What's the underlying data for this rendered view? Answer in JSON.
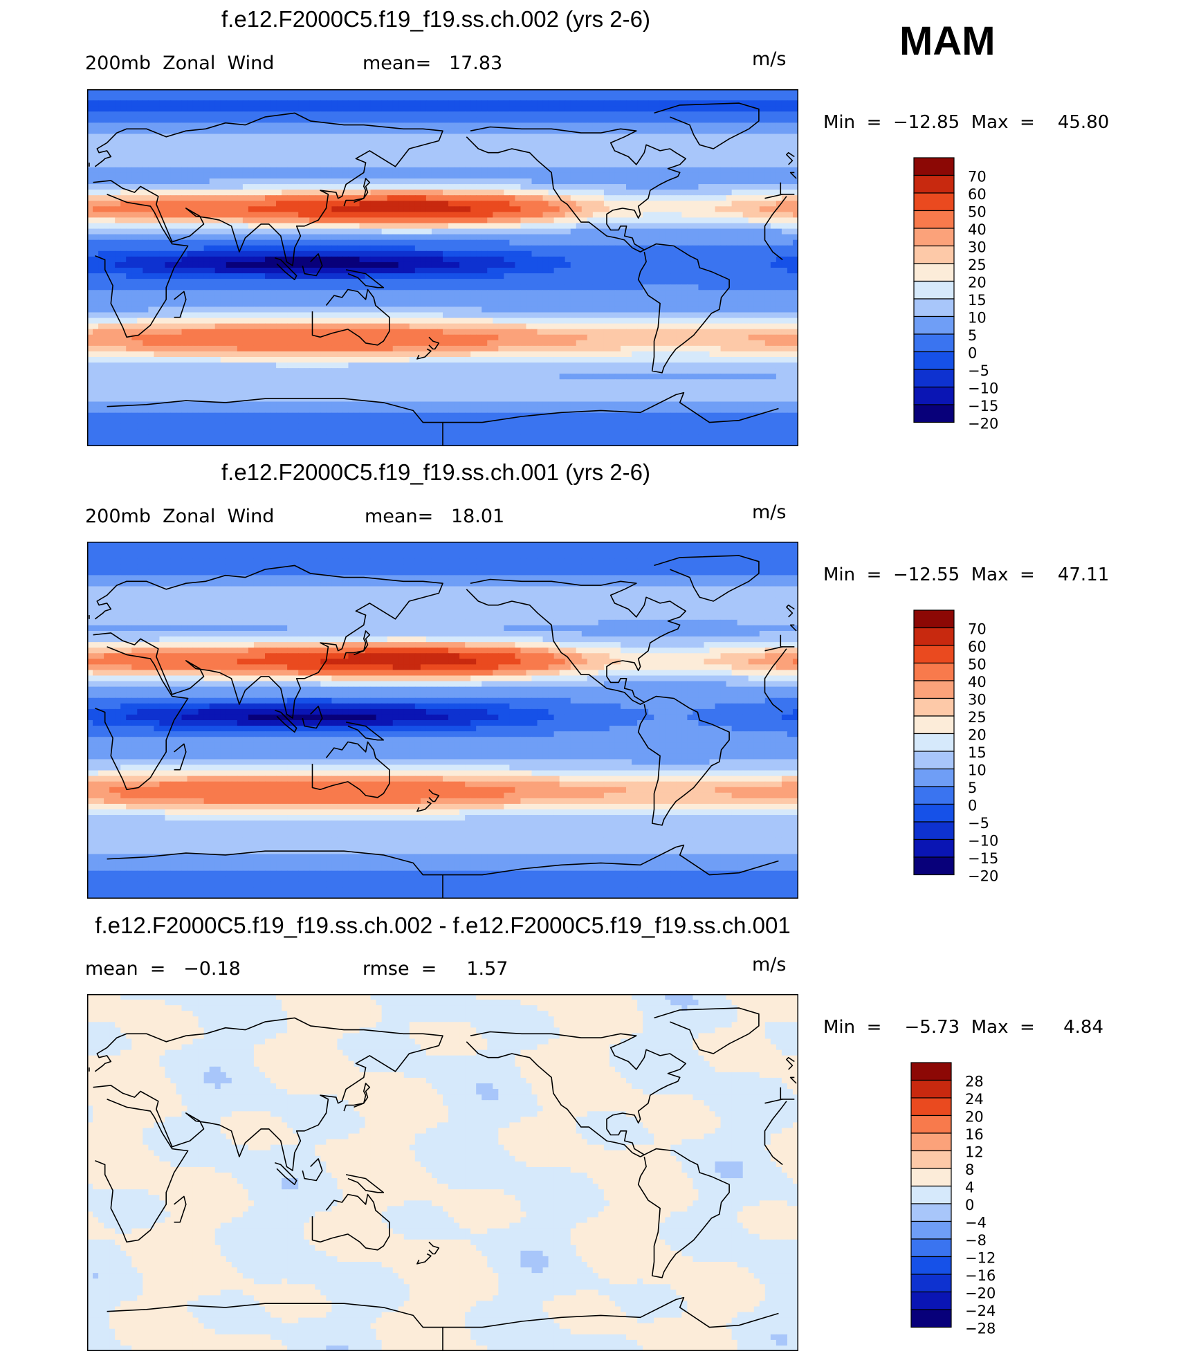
{
  "season": "MAM",
  "colors": {
    "abs_palette": [
      "#08007a",
      "#0a15b4",
      "#0e32d0",
      "#1651e8",
      "#3a74f0",
      "#6f9ef6",
      "#a8c6fa",
      "#d6e9fb",
      "#fcecd9",
      "#fdc9a8",
      "#fba27a",
      "#f87a4c",
      "#ea4a1f",
      "#c8290f",
      "#8c0805"
    ],
    "diff_palette": [
      "#08007a",
      "#0a15b4",
      "#0e32d0",
      "#1651e8",
      "#3a74f0",
      "#6f9ef6",
      "#a8c6fa",
      "#d6e9fb",
      "#fcecd9",
      "#fdc9a8",
      "#fba27a",
      "#f87a4c",
      "#ea4a1f",
      "#c8290f",
      "#8c0805"
    ]
  },
  "panels": [
    {
      "title": "f.e12.F2000C5.f19_f19.ss.ch.002 (yrs 2-6)",
      "left_label": "200mb  Zonal  Wind",
      "mid_label": "mean=   17.83",
      "units": "m/s",
      "minmax": "Min  =  −12.85  Max  =    45.80",
      "field": "abs",
      "colorbar": {
        "levels": [
          "70",
          "60",
          "50",
          "40",
          "30",
          "25",
          "20",
          "15",
          "10",
          "5",
          "0",
          "−5",
          "−10",
          "−15",
          "−20"
        ]
      }
    },
    {
      "title": "f.e12.F2000C5.f19_f19.ss.ch.001 (yrs 2-6)",
      "left_label": "200mb  Zonal  Wind",
      "mid_label": "mean=   18.01",
      "units": "m/s",
      "minmax": "Min  =  −12.55  Max  =    47.11",
      "field": "abs",
      "colorbar": {
        "levels": [
          "70",
          "60",
          "50",
          "40",
          "30",
          "25",
          "20",
          "15",
          "10",
          "5",
          "0",
          "−5",
          "−10",
          "−15",
          "−20"
        ]
      }
    },
    {
      "title": "f.e12.F2000C5.f19_f19.ss.ch.002 - f.e12.F2000C5.f19_f19.ss.ch.001",
      "left_label": "mean  =   −0.18",
      "mid_label": "rmse  =     1.57",
      "units": "m/s",
      "minmax": "Min  =    −5.73  Max  =     4.84",
      "field": "diff",
      "colorbar": {
        "levels": [
          "28",
          "24",
          "20",
          "16",
          "12",
          "8",
          "4",
          "0",
          "−4",
          "−8",
          "−12",
          "−16",
          "−20",
          "−24",
          "−28"
        ]
      }
    }
  ]
}
